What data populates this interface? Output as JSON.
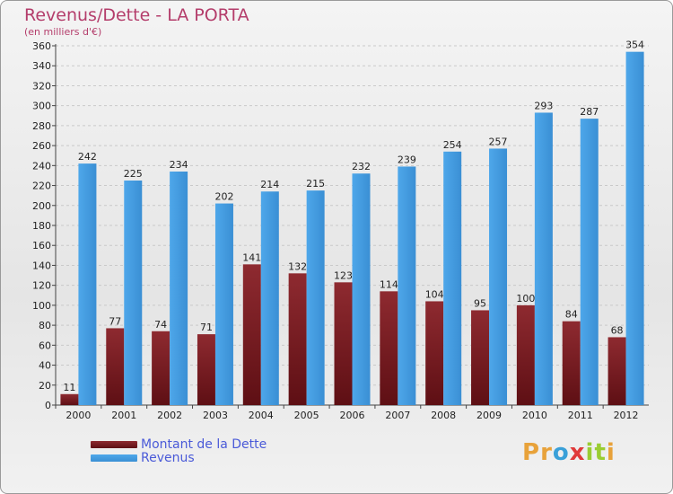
{
  "title": "Revenus/Dette - LA PORTA",
  "subtitle": "(en milliers d'€)",
  "logo": {
    "letters": [
      "P",
      "r",
      "o",
      "x",
      "i",
      "t",
      "i"
    ],
    "colors": [
      "#e8a23a",
      "#e8a23a",
      "#3aa0d8",
      "#e03a3a",
      "#9acd32",
      "#9acd32",
      "#e8a23a"
    ]
  },
  "colors": {
    "dette": "#7a1f24",
    "revenus": "#3f98de"
  },
  "chart_data": {
    "type": "bar",
    "categories": [
      "2000",
      "2001",
      "2002",
      "2003",
      "2004",
      "2005",
      "2006",
      "2007",
      "2008",
      "2009",
      "2010",
      "2011",
      "2012"
    ],
    "series": [
      {
        "name": "Montant de la Dette",
        "values": [
          11,
          77,
          74,
          71,
          141,
          132,
          123,
          114,
          104,
          95,
          100,
          84,
          68
        ]
      },
      {
        "name": "Revenus",
        "values": [
          242,
          225,
          234,
          202,
          214,
          215,
          232,
          239,
          254,
          257,
          293,
          287,
          354
        ]
      }
    ],
    "yticks": [
      0,
      20,
      40,
      60,
      80,
      100,
      120,
      140,
      160,
      180,
      200,
      220,
      240,
      260,
      280,
      300,
      320,
      340,
      360
    ],
    "ylim": [
      0,
      360
    ],
    "grid": true,
    "legend": "bottom-left"
  }
}
